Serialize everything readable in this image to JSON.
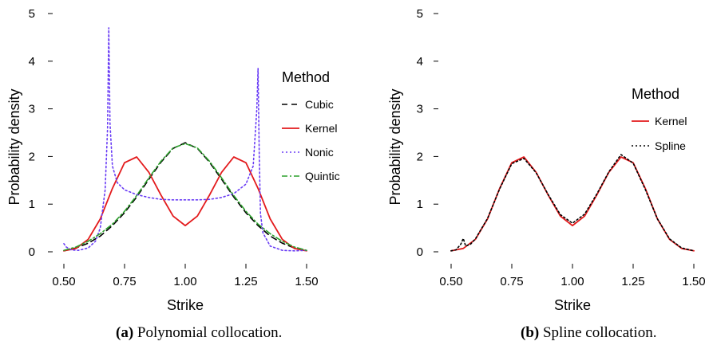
{
  "chart_data": [
    {
      "type": "line",
      "panel": "a",
      "xlabel": "Strike",
      "ylabel": "Probability density",
      "xlim": [
        0.5,
        1.5
      ],
      "ylim": [
        0,
        5
      ],
      "xticks": [
        "0.50",
        "0.75",
        "1.00",
        "1.25",
        "1.50"
      ],
      "yticks": [
        "0",
        "1",
        "2",
        "3",
        "4",
        "5"
      ],
      "grid": false,
      "legend_title": "Method",
      "legend_position": "right",
      "caption_label": "(a)",
      "caption_text": " Polynomial collocation.",
      "series": [
        {
          "name": "Cubic",
          "color": "#000000",
          "dash": "dashed",
          "x": [
            0.5,
            0.55,
            0.6,
            0.65,
            0.7,
            0.75,
            0.8,
            0.85,
            0.9,
            0.95,
            1.0,
            1.05,
            1.1,
            1.15,
            1.2,
            1.25,
            1.3,
            1.35,
            1.4,
            1.45,
            1.5
          ],
          "y": [
            0.02,
            0.08,
            0.18,
            0.33,
            0.55,
            0.82,
            1.15,
            1.52,
            1.88,
            2.17,
            2.29,
            2.17,
            1.88,
            1.52,
            1.15,
            0.82,
            0.55,
            0.33,
            0.18,
            0.08,
            0.02
          ]
        },
        {
          "name": "Kernel",
          "color": "#e31a1c",
          "dash": "solid",
          "x": [
            0.5,
            0.55,
            0.6,
            0.65,
            0.7,
            0.75,
            0.8,
            0.85,
            0.9,
            0.95,
            1.0,
            1.05,
            1.1,
            1.15,
            1.2,
            1.25,
            1.3,
            1.35,
            1.4,
            1.45,
            1.5
          ],
          "y": [
            0.02,
            0.07,
            0.26,
            0.69,
            1.33,
            1.87,
            1.99,
            1.67,
            1.19,
            0.75,
            0.55,
            0.75,
            1.19,
            1.67,
            1.99,
            1.87,
            1.33,
            0.69,
            0.26,
            0.07,
            0.02
          ]
        },
        {
          "name": "Nonic",
          "color": "#6a3df5",
          "dash": "dotted",
          "x": [
            0.5,
            0.51,
            0.53,
            0.56,
            0.6,
            0.63,
            0.65,
            0.67,
            0.68,
            0.685,
            0.69,
            0.7,
            0.72,
            0.75,
            0.8,
            0.85,
            0.9,
            0.95,
            1.0,
            1.05,
            1.1,
            1.15,
            1.2,
            1.25,
            1.28,
            1.295,
            1.3,
            1.305,
            1.31,
            1.32,
            1.35,
            1.4,
            1.45,
            1.5
          ],
          "y": [
            0.17,
            0.1,
            0.04,
            0.03,
            0.08,
            0.22,
            0.5,
            1.3,
            2.6,
            4.7,
            2.7,
            1.8,
            1.45,
            1.3,
            1.2,
            1.14,
            1.1,
            1.09,
            1.09,
            1.09,
            1.1,
            1.14,
            1.22,
            1.42,
            1.8,
            3.0,
            3.85,
            2.0,
            0.8,
            0.4,
            0.12,
            0.03,
            0.02,
            0.03
          ]
        },
        {
          "name": "Quintic",
          "color": "#2ca02c",
          "dash": "dashdot",
          "x": [
            0.5,
            0.55,
            0.6,
            0.65,
            0.7,
            0.75,
            0.8,
            0.85,
            0.9,
            0.95,
            1.0,
            1.05,
            1.1,
            1.15,
            1.2,
            1.25,
            1.3,
            1.35,
            1.4,
            1.45,
            1.5
          ],
          "y": [
            0.03,
            0.1,
            0.22,
            0.38,
            0.58,
            0.85,
            1.18,
            1.55,
            1.9,
            2.18,
            2.27,
            2.18,
            1.9,
            1.55,
            1.18,
            0.85,
            0.58,
            0.38,
            0.22,
            0.1,
            0.03
          ]
        }
      ]
    },
    {
      "type": "line",
      "panel": "b",
      "xlabel": "Strike",
      "ylabel": "Probability density",
      "xlim": [
        0.5,
        1.5
      ],
      "ylim": [
        0,
        5
      ],
      "xticks": [
        "0.50",
        "0.75",
        "1.00",
        "1.25",
        "1.50"
      ],
      "yticks": [
        "0",
        "1",
        "2",
        "3",
        "4",
        "5"
      ],
      "grid": false,
      "legend_title": "Method",
      "legend_position": "right",
      "caption_label": "(b)",
      "caption_text": " Spline collocation.",
      "series": [
        {
          "name": "Kernel",
          "color": "#e31a1c",
          "dash": "solid",
          "x": [
            0.5,
            0.55,
            0.6,
            0.65,
            0.7,
            0.75,
            0.8,
            0.85,
            0.9,
            0.95,
            1.0,
            1.05,
            1.1,
            1.15,
            1.2,
            1.25,
            1.3,
            1.35,
            1.4,
            1.45,
            1.5
          ],
          "y": [
            0.02,
            0.07,
            0.26,
            0.69,
            1.33,
            1.87,
            1.99,
            1.67,
            1.19,
            0.75,
            0.55,
            0.75,
            1.19,
            1.67,
            1.99,
            1.87,
            1.33,
            0.69,
            0.26,
            0.07,
            0.02
          ]
        },
        {
          "name": "Spline",
          "color": "#000000",
          "dash": "dotted",
          "x": [
            0.5,
            0.52,
            0.54,
            0.55,
            0.56,
            0.58,
            0.6,
            0.65,
            0.7,
            0.75,
            0.8,
            0.85,
            0.9,
            0.95,
            1.0,
            1.05,
            1.1,
            1.15,
            1.2,
            1.25,
            1.3,
            1.35,
            1.4,
            1.45,
            1.5
          ],
          "y": [
            0.02,
            0.04,
            0.16,
            0.28,
            0.12,
            0.16,
            0.27,
            0.7,
            1.32,
            1.85,
            1.96,
            1.66,
            1.2,
            0.78,
            0.6,
            0.79,
            1.21,
            1.68,
            2.04,
            1.86,
            1.31,
            0.69,
            0.27,
            0.08,
            0.02
          ]
        }
      ]
    }
  ]
}
